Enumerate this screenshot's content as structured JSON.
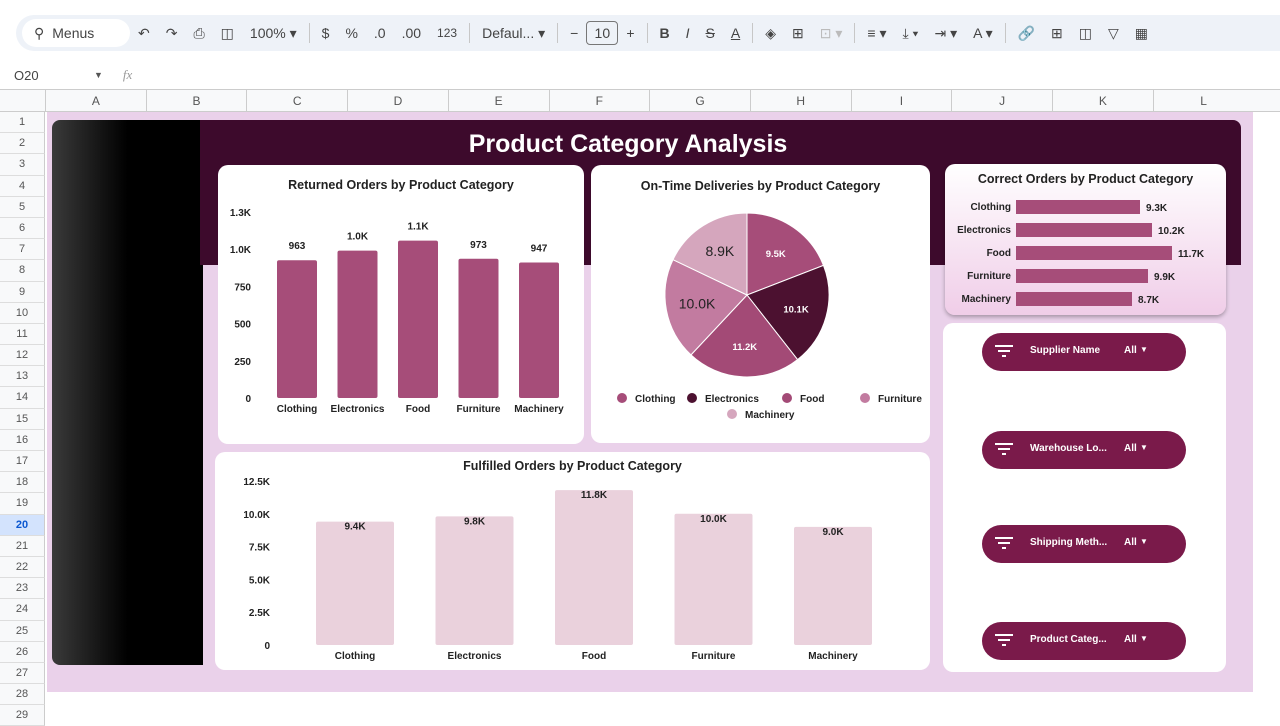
{
  "toolbar": {
    "search": "Menus",
    "zoom": "100%",
    "currency": "$",
    "percent": "%",
    "dec_less": ".0",
    "dec_more": ".00",
    "format_123": "123",
    "font": "Defaul...",
    "font_size": "10",
    "minus": "−",
    "plus": "+"
  },
  "formula_bar": {
    "cell_ref": "O20",
    "fx": "fx"
  },
  "columns": [
    "A",
    "B",
    "C",
    "D",
    "E",
    "F",
    "G",
    "H",
    "I",
    "J",
    "K",
    "L"
  ],
  "rows": [
    "1",
    "2",
    "3",
    "4",
    "5",
    "6",
    "7",
    "8",
    "9",
    "10",
    "11",
    "12",
    "13",
    "14",
    "15",
    "16",
    "17",
    "18",
    "19",
    "20",
    "21",
    "22",
    "23",
    "24",
    "25",
    "26",
    "27",
    "28",
    "29"
  ],
  "selected_row": "20",
  "dashboard": {
    "title": "Product Category Analysis"
  },
  "colors": {
    "header": "#3d0a2c",
    "bar": "#a64d79",
    "fulfilled_bar": "#ead1dc",
    "filter": "#7a1a4a",
    "pie": [
      "#a64d79",
      "#4c1130",
      "#a34a76",
      "#c27ba0",
      "#d5a6bd"
    ]
  },
  "filters": [
    {
      "label": "Supplier Name",
      "value": "All"
    },
    {
      "label": "Warehouse Lo...",
      "value": "All"
    },
    {
      "label": "Shipping Meth...",
      "value": "All"
    },
    {
      "label": "Product Categ...",
      "value": "All"
    }
  ],
  "chart_data": [
    {
      "type": "bar",
      "title": "Returned Orders  by Product Category",
      "categories": [
        "Clothing",
        "Electronics",
        "Food",
        "Furniture",
        "Machinery"
      ],
      "values": [
        963,
        1030,
        1100,
        973,
        947
      ],
      "data_labels": [
        "963",
        "1.0K",
        "1.1K",
        "973",
        "947"
      ],
      "yticks": [
        "0",
        "250",
        "500",
        "750",
        "1.0K",
        "1.3K"
      ],
      "ylim": [
        0,
        1300
      ]
    },
    {
      "type": "pie",
      "title": "On-Time Deliveries  by Product Category",
      "categories": [
        "Clothing",
        "Electronics",
        "Food",
        "Furniture",
        "Machinery"
      ],
      "values": [
        9500,
        10100,
        11200,
        10000,
        8900
      ],
      "data_labels": [
        "9.5K",
        "10.1K",
        "11.2K",
        "10.0K",
        "8.9K"
      ],
      "legend": "bottom"
    },
    {
      "type": "bar",
      "orientation": "horizontal",
      "title": "Correct Orders  by Product Category",
      "categories": [
        "Clothing",
        "Electronics",
        "Food",
        "Furniture",
        "Machinery"
      ],
      "values": [
        9300,
        10200,
        11700,
        9900,
        8700
      ],
      "data_labels": [
        "9.3K",
        "10.2K",
        "11.7K",
        "9.9K",
        "8.7K"
      ]
    },
    {
      "type": "bar",
      "title": "Fulfilled Orders  by Product Category",
      "categories": [
        "Clothing",
        "Electronics",
        "Food",
        "Furniture",
        "Machinery"
      ],
      "values": [
        9400,
        9800,
        11800,
        10000,
        9000
      ],
      "data_labels": [
        "9.4K",
        "9.8K",
        "11.8K",
        "10.0K",
        "9.0K"
      ],
      "yticks": [
        "0",
        "2.5K",
        "5.0K",
        "7.5K",
        "10.0K",
        "12.5K"
      ],
      "ylim": [
        0,
        12500
      ]
    }
  ]
}
